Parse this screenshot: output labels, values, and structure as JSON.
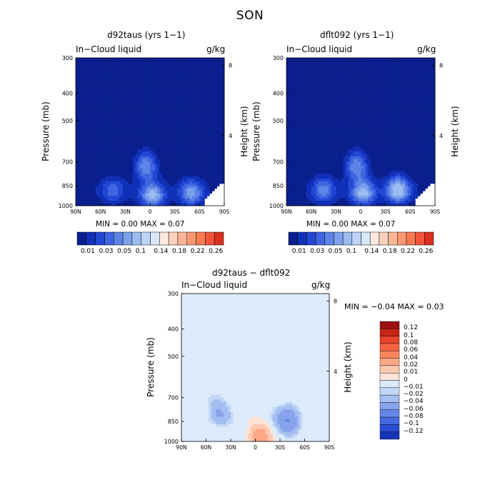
{
  "figure": {
    "title": "SON"
  },
  "colors": {
    "pos": [
      "#fde9df",
      "#fcd1bd",
      "#fcb697",
      "#fb9a72",
      "#f97b51",
      "#f2553b",
      "#d9301f",
      "#b31414",
      "#7c0a0a"
    ],
    "neg": [
      "#d7e8fb",
      "#bcd5f6",
      "#9cbcf1",
      "#7ea1ec",
      "#5f84e7",
      "#3f66e0",
      "#2347d5",
      "#1130b8",
      "#0a1f8e"
    ],
    "diffPos": [
      "#fde4d6",
      "#fcc8b0",
      "#fba886",
      "#f9865f",
      "#f56442",
      "#e8442a",
      "#c62518",
      "#9c1111",
      "#7a0909"
    ],
    "diffNeg": [
      "#dceafa",
      "#c2d7f6",
      "#a4bef1",
      "#86a3ec",
      "#6687e6",
      "#4569df",
      "#2a4bd4",
      "#1634b8",
      "#0b2090"
    ],
    "seqBlues": [
      "#0a1f8e",
      "#1130b8",
      "#2347d5",
      "#3f66e0",
      "#5f84e7",
      "#7ea1ec",
      "#9cbcf1",
      "#bcd5f6",
      "#d7e8fb"
    ]
  },
  "panels": [
    {
      "title": "d92taus (yrs 1−1)",
      "leftLabel": "In−Cloud liquid",
      "rightLabel": "g/kg",
      "ylabel": "Pressure (mb)",
      "y2label": "Height (km)",
      "minmax": "MIN =    0.00   MAX =    0.07",
      "colorbar": {
        "labels": [
          "0.01",
          "0.03",
          "0.05",
          "0.1",
          "0.14",
          "0.18",
          "0.22",
          "0.26"
        ]
      }
    },
    {
      "title": "dflt092 (yrs 1−1)",
      "leftLabel": "In−Cloud liquid",
      "rightLabel": "g/kg",
      "ylabel": "Pressure (mb)",
      "y2label": "Height (km)",
      "minmax": "MIN =    0.00   MAX =    0.07",
      "colorbar": {
        "labels": [
          "0.01",
          "0.03",
          "0.05",
          "0.1",
          "0.14",
          "0.18",
          "0.22",
          "0.26"
        ]
      }
    },
    {
      "title": "d92taus − dflt092",
      "leftLabel": "In−Cloud liquid",
      "rightLabel": "g/kg",
      "ylabel": "Pressure (mb)",
      "y2label": "Height (km)",
      "minmax": "MIN =    −0.04   MAX =    0.03",
      "colorbar": {
        "labels": [
          "0.12",
          "0.1",
          "0.08",
          "0.06",
          "0.04",
          "0.02",
          "0.01",
          "0",
          "−0.01",
          "−0.02",
          "−0.04",
          "−0.06",
          "−0.08",
          "−0.1",
          "−0.12"
        ]
      }
    }
  ],
  "chart_data": [
    {
      "type": "heatmap",
      "title": "d92taus (yrs 1−1)",
      "xlabel": "",
      "ylabel": "Pressure (mb)",
      "y2label": "Height (km)",
      "x_ticks": [
        "90N",
        "60N",
        "30N",
        "0",
        "30S",
        "60S",
        "90S"
      ],
      "y_ticks": [
        300,
        400,
        500,
        700,
        850,
        1000
      ],
      "y2_ticks": [
        4,
        8
      ],
      "levels": [
        0.01,
        0.02,
        0.03,
        0.04,
        0.05,
        0.06,
        0.08,
        0.1,
        0.12,
        0.14,
        0.16,
        0.18,
        0.2,
        0.22,
        0.24,
        0.26
      ],
      "min": 0.0,
      "max": 0.07,
      "features": [
        {
          "lat": -3,
          "p": 920,
          "v": 0.06
        },
        {
          "lat": 5,
          "p": 720,
          "v": 0.05
        },
        {
          "lat": -50,
          "p": 900,
          "v": 0.05
        },
        {
          "lat": 45,
          "p": 880,
          "v": 0.03
        }
      ]
    },
    {
      "type": "heatmap",
      "title": "dflt092 (yrs 1−1)",
      "xlabel": "",
      "ylabel": "Pressure (mb)",
      "y2label": "Height (km)",
      "x_ticks": [
        "90N",
        "60N",
        "30N",
        "0",
        "30S",
        "60S",
        "90S"
      ],
      "y_ticks": [
        300,
        400,
        500,
        700,
        850,
        1000
      ],
      "y2_ticks": [
        4,
        8
      ],
      "levels": [
        0.01,
        0.02,
        0.03,
        0.04,
        0.05,
        0.06,
        0.08,
        0.1,
        0.12,
        0.14,
        0.16,
        0.18,
        0.2,
        0.22,
        0.24,
        0.26
      ],
      "min": 0.0,
      "max": 0.07,
      "features": [
        {
          "lat": -3,
          "p": 900,
          "v": 0.06
        },
        {
          "lat": 5,
          "p": 720,
          "v": 0.05
        },
        {
          "lat": -45,
          "p": 880,
          "v": 0.07
        },
        {
          "lat": 45,
          "p": 880,
          "v": 0.04
        }
      ]
    },
    {
      "type": "heatmap",
      "title": "d92taus − dflt092",
      "xlabel": "",
      "ylabel": "Pressure (mb)",
      "y2label": "Height (km)",
      "x_ticks": [
        "90N",
        "60N",
        "30N",
        "0",
        "30S",
        "60S",
        "90S"
      ],
      "y_ticks": [
        300,
        400,
        500,
        700,
        850,
        1000
      ],
      "y2_ticks": [
        4,
        8
      ],
      "levels": [
        -0.12,
        -0.1,
        -0.08,
        -0.06,
        -0.04,
        -0.02,
        -0.01,
        0,
        0.01,
        0.02,
        0.04,
        0.06,
        0.08,
        0.1,
        0.12
      ],
      "min": -0.04,
      "max": 0.03,
      "features": [
        {
          "lat": -40,
          "p": 840,
          "v": -0.04
        },
        {
          "lat": -5,
          "p": 970,
          "v": 0.03
        },
        {
          "lat": 45,
          "p": 800,
          "v": -0.02
        }
      ]
    }
  ]
}
